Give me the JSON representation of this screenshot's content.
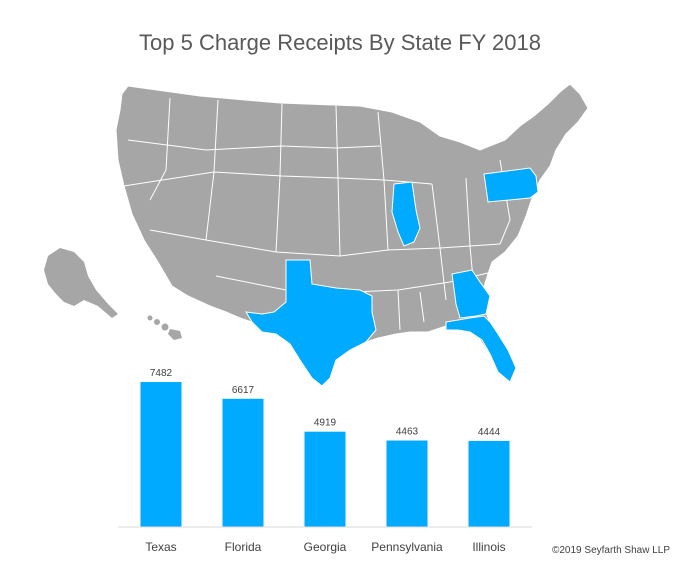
{
  "title": "Top 5 Charge Receipts By State FY 2018",
  "copyright": "©2019 Seyfarth Shaw LLP",
  "colors": {
    "highlight": "#00AAFF",
    "map_base": "#A6A6A6",
    "map_border": "#FFFFFF",
    "axis_line": "#D9D9D9",
    "text": "#404040"
  },
  "map": {
    "highlighted_states": [
      "Texas",
      "Florida",
      "Georgia",
      "Pennsylvania",
      "Illinois"
    ]
  },
  "chart_data": {
    "type": "bar",
    "title": "",
    "xlabel": "",
    "ylabel": "",
    "categories": [
      "Texas",
      "Florida",
      "Georgia",
      "Pennsylvania",
      "Illinois"
    ],
    "values": [
      7482,
      6617,
      4919,
      4463,
      4444
    ],
    "ylim": [
      0,
      8000
    ],
    "grid": false,
    "data_labels": true,
    "color": "#00AAFF"
  }
}
